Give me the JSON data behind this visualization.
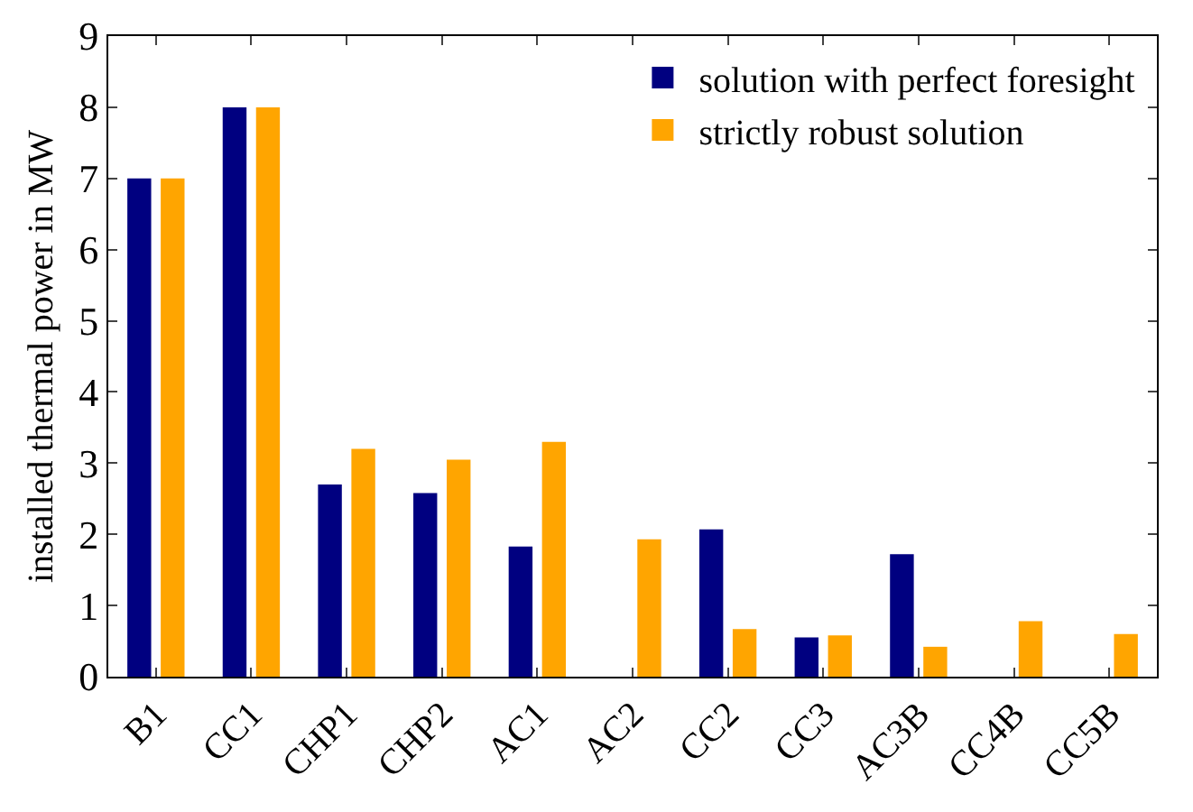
{
  "chart_data": {
    "type": "bar",
    "ylabel": "installed thermal power in MW",
    "categories": [
      "B1",
      "CC1",
      "CHP1",
      "CHP2",
      "AC1",
      "AC2",
      "CC2",
      "CC3",
      "AC3B",
      "CC4B",
      "CC5B"
    ],
    "series": [
      {
        "name": "solution with perfect foresight",
        "color": "#000080",
        "values": [
          7,
          8,
          2.7,
          2.58,
          1.83,
          0,
          2.07,
          0.55,
          1.72,
          0,
          0
        ]
      },
      {
        "name": "strictly robust solution",
        "color": "#ffa500",
        "values": [
          7,
          8,
          3.2,
          3.05,
          3.3,
          1.93,
          0.67,
          0.58,
          0.42,
          0.78,
          0.6
        ]
      }
    ],
    "ylim": [
      0,
      9
    ],
    "yticks": [
      0,
      1,
      2,
      3,
      4,
      5,
      6,
      7,
      8,
      9
    ],
    "grid": false,
    "legend": "top right"
  }
}
